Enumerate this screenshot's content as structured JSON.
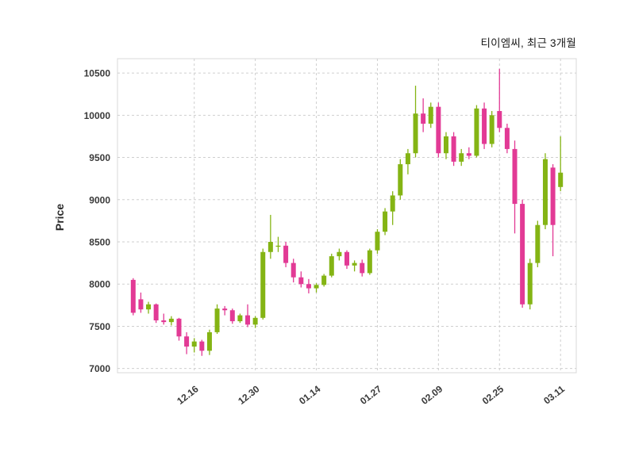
{
  "header": {
    "title": "티이엠씨, 최근 3개월"
  },
  "chart_data": {
    "type": "candlestick",
    "title": "티이엠씨, 최근 3개월",
    "ylabel": "Price",
    "ylim": [
      6950,
      10670
    ],
    "yticks": [
      7000,
      7500,
      8000,
      8500,
      9000,
      9500,
      10000,
      10500
    ],
    "xticks": [
      {
        "label": "12.16",
        "index": 8
      },
      {
        "label": "12.30",
        "index": 16
      },
      {
        "label": "01.14",
        "index": 24
      },
      {
        "label": "01.27",
        "index": 32
      },
      {
        "label": "02.09",
        "index": 40
      },
      {
        "label": "02.25",
        "index": 48
      },
      {
        "label": "03.11",
        "index": 56
      }
    ],
    "colors": {
      "up": "#84b414",
      "down": "#e23a95",
      "grid": "#cfcfcf",
      "border": "#d8d8d8",
      "text": "#3a3a3a"
    },
    "candles": [
      [
        8050,
        8070,
        7630,
        7660
      ],
      [
        7820,
        7900,
        7660,
        7700
      ],
      [
        7700,
        7790,
        7650,
        7760
      ],
      [
        7760,
        7770,
        7540,
        7570
      ],
      [
        7570,
        7650,
        7520,
        7550
      ],
      [
        7550,
        7620,
        7510,
        7590
      ],
      [
        7590,
        7600,
        7330,
        7380
      ],
      [
        7380,
        7430,
        7170,
        7260
      ],
      [
        7260,
        7360,
        7190,
        7320
      ],
      [
        7320,
        7340,
        7150,
        7210
      ],
      [
        7210,
        7460,
        7160,
        7430
      ],
      [
        7430,
        7760,
        7410,
        7710
      ],
      [
        7710,
        7740,
        7630,
        7690
      ],
      [
        7690,
        7710,
        7530,
        7560
      ],
      [
        7560,
        7650,
        7540,
        7630
      ],
      [
        7630,
        7760,
        7490,
        7520
      ],
      [
        7520,
        7620,
        7480,
        7600
      ],
      [
        7600,
        8420,
        7580,
        8380
      ],
      [
        8380,
        8820,
        8300,
        8500
      ],
      [
        8450,
        8560,
        8380,
        8455
      ],
      [
        8455,
        8500,
        8200,
        8250
      ],
      [
        8250,
        8300,
        8020,
        8080
      ],
      [
        8080,
        8150,
        7960,
        8000
      ],
      [
        8000,
        8060,
        7890,
        7950
      ],
      [
        7950,
        8010,
        7900,
        7990
      ],
      [
        7990,
        8120,
        7970,
        8100
      ],
      [
        8100,
        8360,
        8080,
        8330
      ],
      [
        8330,
        8420,
        8280,
        8380
      ],
      [
        8380,
        8400,
        8180,
        8220
      ],
      [
        8220,
        8280,
        8150,
        8250
      ],
      [
        8250,
        8290,
        8090,
        8130
      ],
      [
        8130,
        8420,
        8110,
        8400
      ],
      [
        8400,
        8650,
        8360,
        8620
      ],
      [
        8620,
        8900,
        8580,
        8860
      ],
      [
        8860,
        9100,
        8700,
        9050
      ],
      [
        9050,
        9480,
        9000,
        9420
      ],
      [
        9420,
        9600,
        9300,
        9550
      ],
      [
        9550,
        10350,
        9500,
        10020
      ],
      [
        10020,
        10200,
        9800,
        9900
      ],
      [
        9900,
        10150,
        9850,
        10100
      ],
      [
        10100,
        10150,
        9500,
        9550
      ],
      [
        9550,
        9800,
        9480,
        9750
      ],
      [
        9750,
        9800,
        9400,
        9450
      ],
      [
        9450,
        9600,
        9400,
        9550
      ],
      [
        9550,
        9620,
        9480,
        9520
      ],
      [
        9520,
        10120,
        9500,
        10080
      ],
      [
        10080,
        10150,
        9600,
        9660
      ],
      [
        9660,
        10050,
        9620,
        10000
      ],
      [
        10050,
        10550,
        9800,
        9850
      ],
      [
        9850,
        9900,
        9550,
        9600
      ],
      [
        9600,
        9700,
        8600,
        8950
      ],
      [
        8950,
        9000,
        7720,
        7760
      ],
      [
        7760,
        8300,
        7700,
        8250
      ],
      [
        8250,
        8750,
        8200,
        8700
      ],
      [
        8700,
        9550,
        8650,
        9480
      ],
      [
        9380,
        9420,
        8330,
        8700
      ],
      [
        9150,
        9750,
        9100,
        9320
      ]
    ]
  }
}
